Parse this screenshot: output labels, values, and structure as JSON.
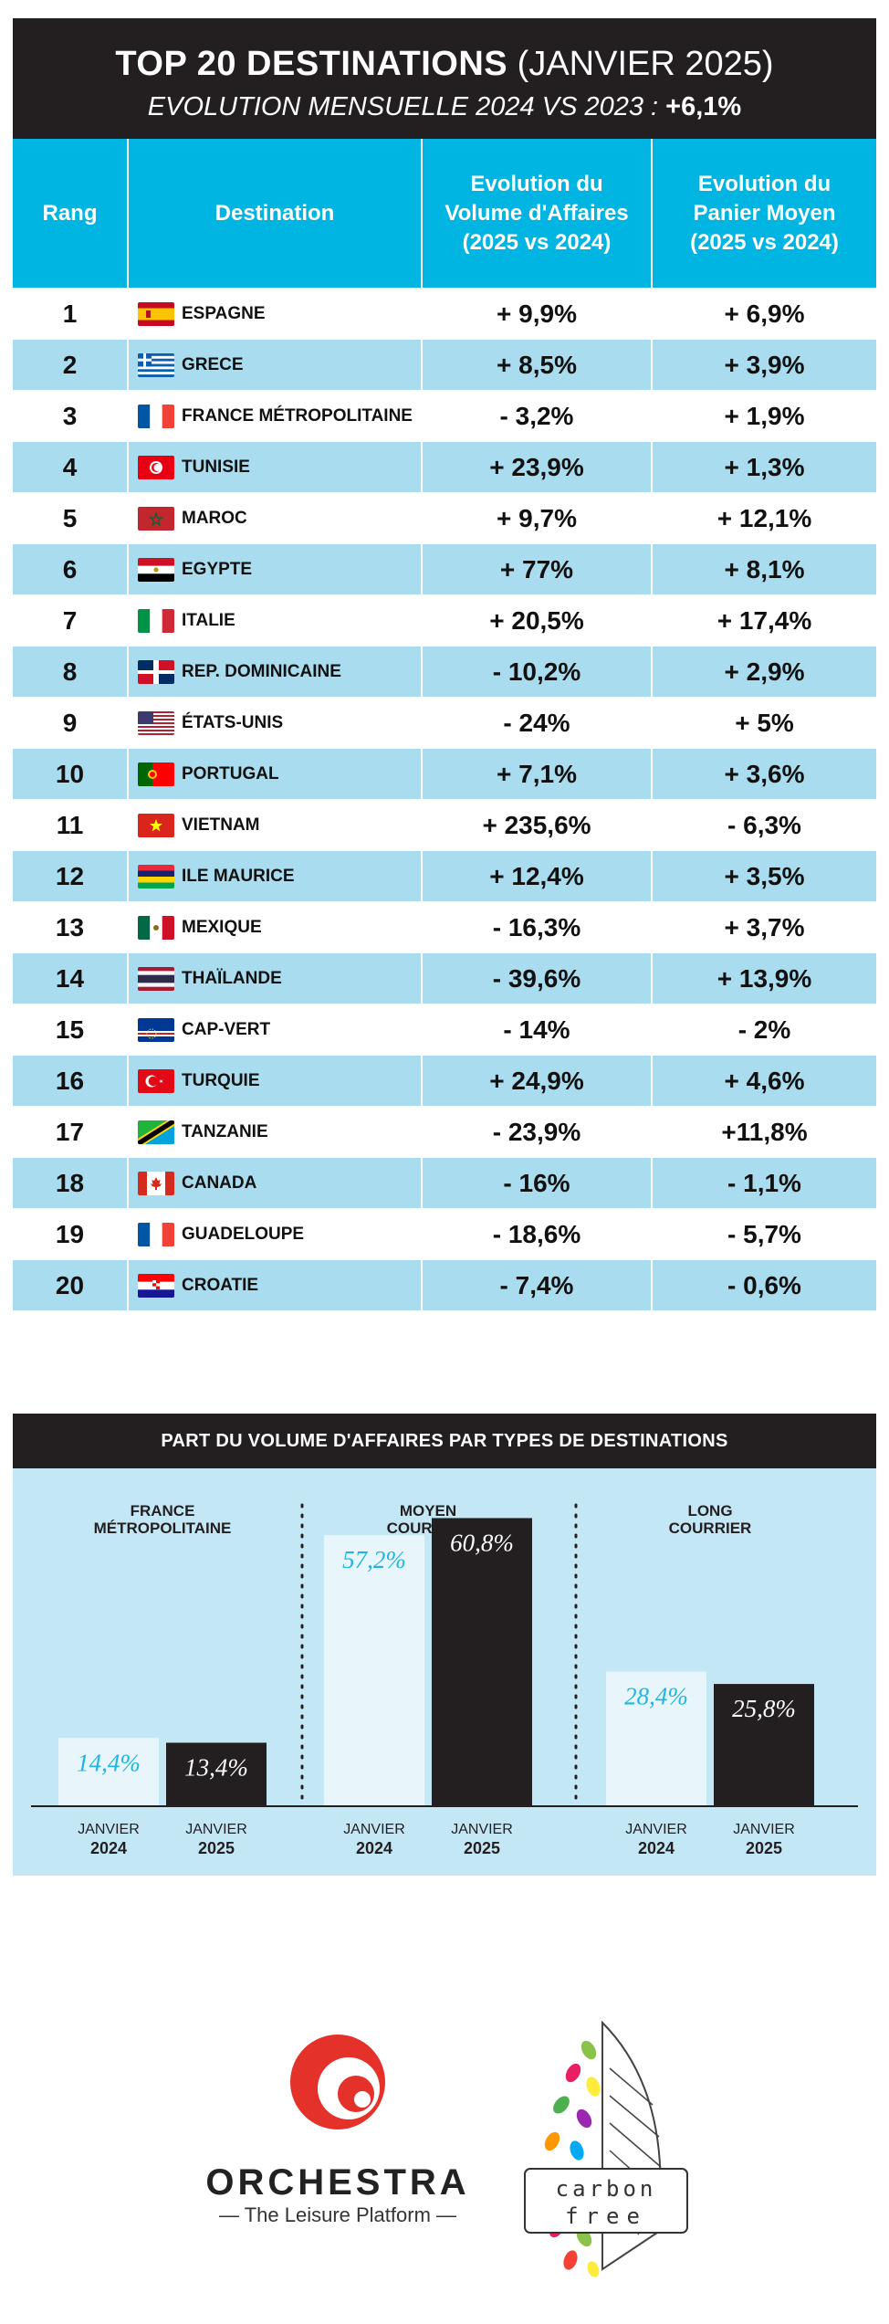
{
  "header": {
    "title_bold": "TOP 20 DESTINATIONS",
    "title_rest": " (JANVIER 2025)",
    "subtitle": "EVOLUTION MENSUELLE 2024 VS 2023 : ",
    "subtitle_value": "+6,1%"
  },
  "table": {
    "columns": [
      "Rang",
      "Destination",
      "Evolution du Volume d'Affaires (2025 vs 2024)",
      "Evolution du Panier Moyen (2025 vs 2024)"
    ],
    "rows": [
      {
        "rank": "1",
        "destination": "ESPAGNE",
        "flag": "spain-flag-icon",
        "volume": "+ 9,9%",
        "panier": "+ 6,9%"
      },
      {
        "rank": "2",
        "destination": "GRECE",
        "flag": "greece-flag-icon",
        "volume": "+ 8,5%",
        "panier": "+ 3,9%"
      },
      {
        "rank": "3",
        "destination": "FRANCE MÉTROPOLITAINE",
        "flag": "france-flag-icon",
        "volume": "- 3,2%",
        "panier": "+ 1,9%"
      },
      {
        "rank": "4",
        "destination": "TUNISIE",
        "flag": "tunisia-flag-icon",
        "volume": "+ 23,9%",
        "panier": "+ 1,3%"
      },
      {
        "rank": "5",
        "destination": "MAROC",
        "flag": "morocco-flag-icon",
        "volume": "+ 9,7%",
        "panier": "+ 12,1%"
      },
      {
        "rank": "6",
        "destination": "EGYPTE",
        "flag": "egypt-flag-icon",
        "volume": "+ 77%",
        "panier": "+ 8,1%"
      },
      {
        "rank": "7",
        "destination": "ITALIE",
        "flag": "italy-flag-icon",
        "volume": "+ 20,5%",
        "panier": "+ 17,4%"
      },
      {
        "rank": "8",
        "destination": "REP. DOMINICAINE",
        "flag": "dominican-republic-flag-icon",
        "volume": "- 10,2%",
        "panier": "+ 2,9%"
      },
      {
        "rank": "9",
        "destination": "ÉTATS-UNIS",
        "flag": "usa-flag-icon",
        "volume": "- 24%",
        "panier": "+ 5%"
      },
      {
        "rank": "10",
        "destination": "PORTUGAL",
        "flag": "portugal-flag-icon",
        "volume": "+ 7,1%",
        "panier": "+ 3,6%"
      },
      {
        "rank": "11",
        "destination": "VIETNAM",
        "flag": "vietnam-flag-icon",
        "volume": "+ 235,6%",
        "panier": "- 6,3%"
      },
      {
        "rank": "12",
        "destination": "ILE MAURICE",
        "flag": "mauritius-flag-icon",
        "volume": "+ 12,4%",
        "panier": "+ 3,5%"
      },
      {
        "rank": "13",
        "destination": "MEXIQUE",
        "flag": "mexico-flag-icon",
        "volume": "- 16,3%",
        "panier": "+ 3,7%"
      },
      {
        "rank": "14",
        "destination": "THAÏLANDE",
        "flag": "thailand-flag-icon",
        "volume": "- 39,6%",
        "panier": "+ 13,9%"
      },
      {
        "rank": "15",
        "destination": "CAP-VERT",
        "flag": "cape-verde-flag-icon",
        "volume": "- 14%",
        "panier": "- 2%"
      },
      {
        "rank": "16",
        "destination": "TURQUIE",
        "flag": "turkey-flag-icon",
        "volume": "+ 24,9%",
        "panier": "+ 4,6%"
      },
      {
        "rank": "17",
        "destination": "TANZANIE",
        "flag": "tanzania-flag-icon",
        "volume": "- 23,9%",
        "panier": "+11,8%"
      },
      {
        "rank": "18",
        "destination": "CANADA",
        "flag": "canada-flag-icon",
        "volume": "- 16%",
        "panier": "- 1,1%"
      },
      {
        "rank": "19",
        "destination": "GUADELOUPE",
        "flag": "france-flag-icon",
        "volume": "- 18,6%",
        "panier": "- 5,7%"
      },
      {
        "rank": "20",
        "destination": "CROATIE",
        "flag": "croatia-flag-icon",
        "volume": "- 7,4%",
        "panier": "- 0,6%"
      }
    ]
  },
  "chart_data": {
    "type": "bar",
    "title": "PART DU VOLUME D'AFFAIRES PAR TYPES DE DESTINATIONS",
    "groups": [
      {
        "name": "FRANCE MÉTROPOLITAINE",
        "values": [
          14.4,
          13.4
        ],
        "labels": [
          "14,4%",
          "13,4%"
        ]
      },
      {
        "name": "MOYEN COURRIER",
        "values": [
          57.2,
          60.8
        ],
        "labels": [
          "57,2%",
          "60,8%"
        ]
      },
      {
        "name": "LONG COURRIER",
        "values": [
          28.4,
          25.8
        ],
        "labels": [
          "28,4%",
          "25,8%"
        ]
      }
    ],
    "categories": [
      {
        "month": "JANVIER",
        "year": "2024"
      },
      {
        "month": "JANVIER",
        "year": "2025"
      }
    ],
    "colors": {
      "2024": "#e8f6fc",
      "2025": "#231f20",
      "label_2024": "#1fb5dd",
      "label_2025": "#ffffff",
      "background": "#c4e7f6"
    },
    "ylim": [
      0,
      100
    ]
  },
  "logos": {
    "orchestra_name": "ORCHESTRA",
    "orchestra_tagline": "— The Leisure Platform —",
    "carbon_line1": "carbon",
    "carbon_line2": "free",
    "orchestra_color": "#e4322b"
  }
}
